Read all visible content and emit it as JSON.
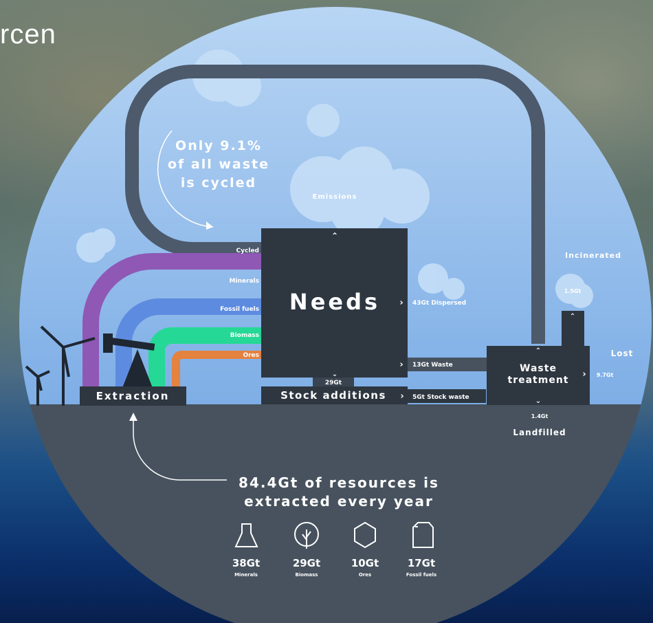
{
  "slide_title_fragment": "rcen",
  "loop_text": [
    "Only 9.1%",
    "of all waste",
    "is cycled"
  ],
  "emissions": "Emissions",
  "needs": "Needs",
  "flows": {
    "cycled": "Cycled",
    "minerals": "Minerals",
    "fossil_fuels": "Fossil fuels",
    "biomass": "Biomass",
    "ores": "Ores"
  },
  "extraction": "Extraction",
  "stock_additions": "Stock additions",
  "stock_additions_value": "29Gt",
  "dispersed": "43Gt Dispersed",
  "waste": "13Gt Waste",
  "stock_waste": "5Gt Stock waste",
  "waste_treatment": [
    "Waste",
    "treatment"
  ],
  "incinerated": "Incinerated",
  "incinerated_value": "1.5Gt",
  "lost": "Lost",
  "lost_value": "9.7Gt",
  "landfilled": "Landfilled",
  "landfilled_value": "1.4Gt",
  "headline": [
    "84.4Gt of resources is",
    "extracted every year"
  ],
  "resources": [
    {
      "icon": "flask-icon",
      "value": "38Gt",
      "label": "Minerals"
    },
    {
      "icon": "tree-icon",
      "value": "29Gt",
      "label": "Biomass"
    },
    {
      "icon": "hexagon-icon",
      "value": "10Gt",
      "label": "Ores"
    },
    {
      "icon": "canister-icon",
      "value": "17Gt",
      "label": "Fossil fuels"
    }
  ],
  "colors": {
    "sky": "#8db8ea",
    "ground": "#47525e",
    "dark": "#2e3640",
    "minerals": "#8f58b5",
    "fossil_fuels": "#5d8be0",
    "biomass": "#25d895",
    "ores": "#e48240"
  }
}
